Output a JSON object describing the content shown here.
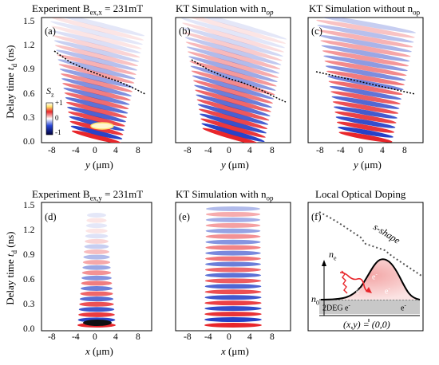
{
  "titles": {
    "top_left": "Experiment B",
    "top_left_sub": "ex,x",
    "top_left_tail": " = 231mT",
    "top_mid": "KT Simulation with n",
    "top_mid_sub": "op",
    "top_right": "KT Simulation without n",
    "top_right_sub": "op",
    "bot_left": "Experiment B",
    "bot_left_sub": "ex,y",
    "bot_left_tail": " = 231mT",
    "bot_mid": "KT Simulation with n",
    "bot_mid_sub": "op",
    "bot_right": "Local Optical Doping"
  },
  "ylabel": {
    "pre": "Delay time ",
    "var": "t",
    "sub": "d",
    "post": " (ns)"
  },
  "xlabel_y": {
    "var": "y",
    "post": " (μm)"
  },
  "xlabel_x": {
    "var": "x",
    "post": " (μm)"
  },
  "yticks": [
    "0.0",
    "0.3",
    "0.6",
    "0.9",
    "1.2",
    "1.5"
  ],
  "xticks": [
    "-8",
    "-4",
    "0",
    "4",
    "8"
  ],
  "panel_labels": [
    "(a)",
    "(b)",
    "(c)",
    "(d)",
    "(e)",
    "(f)"
  ],
  "colorbar": {
    "label_var": "S",
    "label_sub": "z",
    "ticks": [
      "+1",
      "0",
      "-1"
    ]
  },
  "schematic": {
    "shape_label": "s-shape",
    "ne_var": "n",
    "ne_sub": "e",
    "n0_var": "n",
    "n0_sub": "0",
    "deg_label": "2DEG e",
    "electron": "e",
    "origin_label": "(x,y) = (0,0)"
  },
  "colors": {
    "red": "#e8262b",
    "blue": "#1f3bc6",
    "pink": "#f4b6b6",
    "gray": "#c8c8c8"
  }
}
